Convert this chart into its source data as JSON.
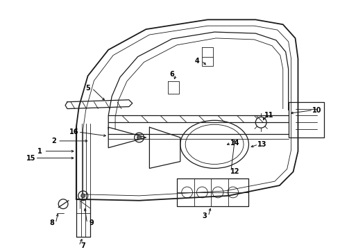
{
  "background": "#ffffff",
  "line_color": "#1a1a1a",
  "label_color": "#000000",
  "lw_main": 1.3,
  "lw_med": 0.9,
  "lw_thin": 0.6
}
